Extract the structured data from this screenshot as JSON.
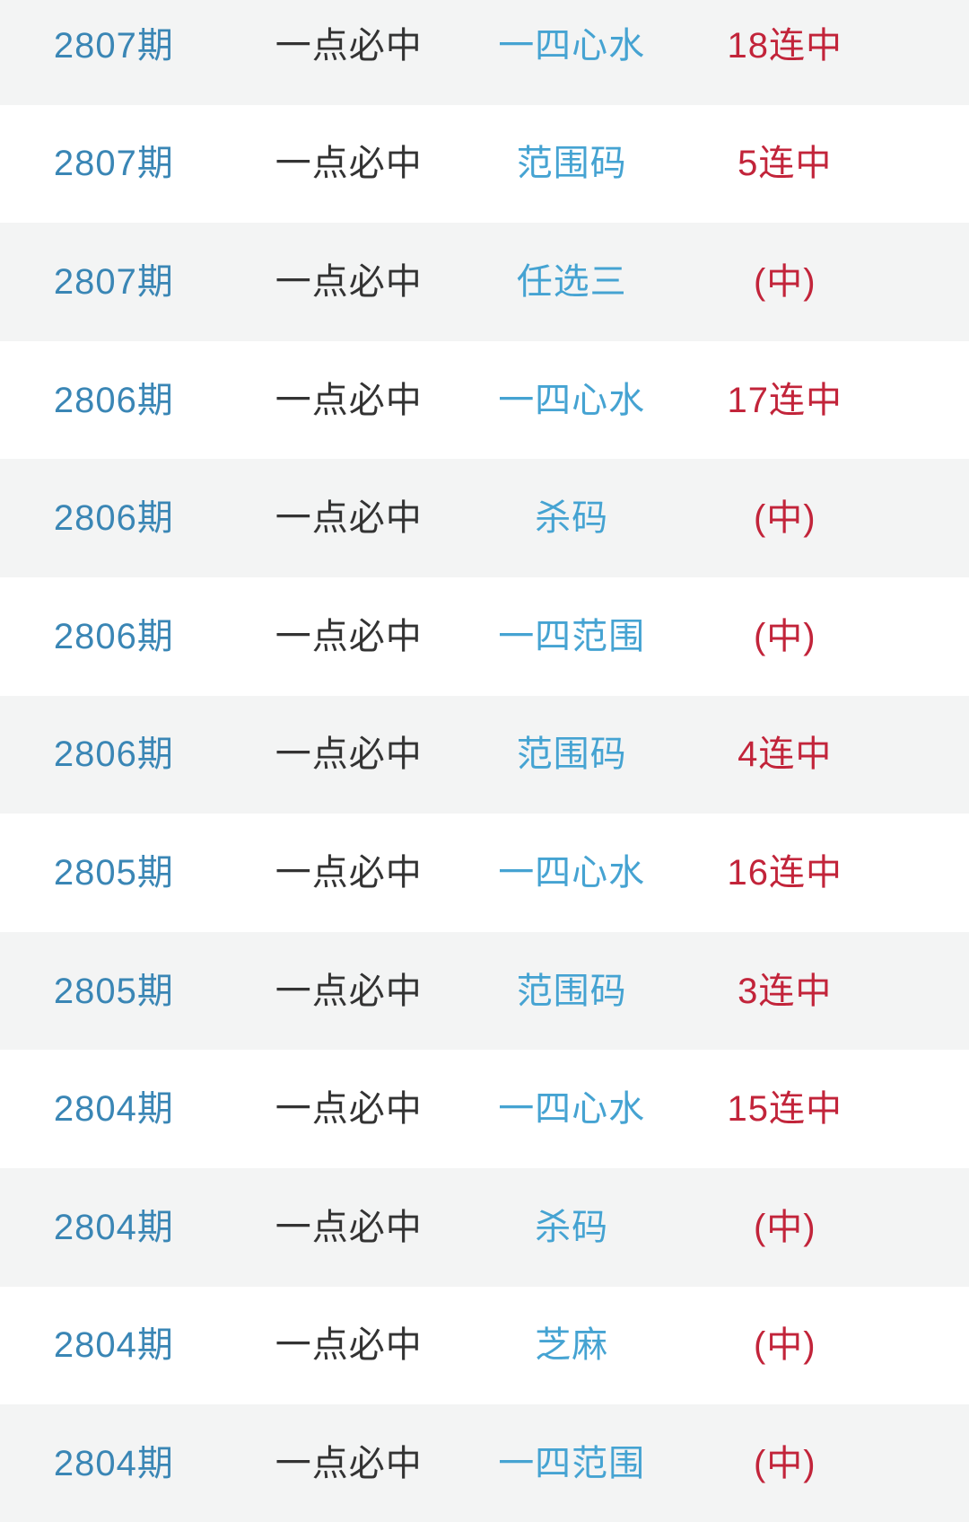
{
  "colors": {
    "period": "#3a86b5",
    "tip_name": "#333333",
    "category": "#45a3d2",
    "result": "#c2243a",
    "row_bg": "#ffffff",
    "row_alt_bg": "#f3f4f4"
  },
  "table": {
    "rows": [
      {
        "period": "2807期",
        "tip_name": "一点必中",
        "category": "一四心水",
        "result": "18连中"
      },
      {
        "period": "2807期",
        "tip_name": "一点必中",
        "category": "范围码",
        "result": "5连中"
      },
      {
        "period": "2807期",
        "tip_name": "一点必中",
        "category": "任选三",
        "result": "(中)"
      },
      {
        "period": "2806期",
        "tip_name": "一点必中",
        "category": "一四心水",
        "result": "17连中"
      },
      {
        "period": "2806期",
        "tip_name": "一点必中",
        "category": "杀码",
        "result": "(中)"
      },
      {
        "period": "2806期",
        "tip_name": "一点必中",
        "category": "一四范围",
        "result": "(中)"
      },
      {
        "period": "2806期",
        "tip_name": "一点必中",
        "category": "范围码",
        "result": "4连中"
      },
      {
        "period": "2805期",
        "tip_name": "一点必中",
        "category": "一四心水",
        "result": "16连中"
      },
      {
        "period": "2805期",
        "tip_name": "一点必中",
        "category": "范围码",
        "result": "3连中"
      },
      {
        "period": "2804期",
        "tip_name": "一点必中",
        "category": "一四心水",
        "result": "15连中"
      },
      {
        "period": "2804期",
        "tip_name": "一点必中",
        "category": "杀码",
        "result": "(中)"
      },
      {
        "period": "2804期",
        "tip_name": "一点必中",
        "category": "芝麻",
        "result": "(中)"
      },
      {
        "period": "2804期",
        "tip_name": "一点必中",
        "category": "一四范围",
        "result": "(中)"
      }
    ]
  }
}
